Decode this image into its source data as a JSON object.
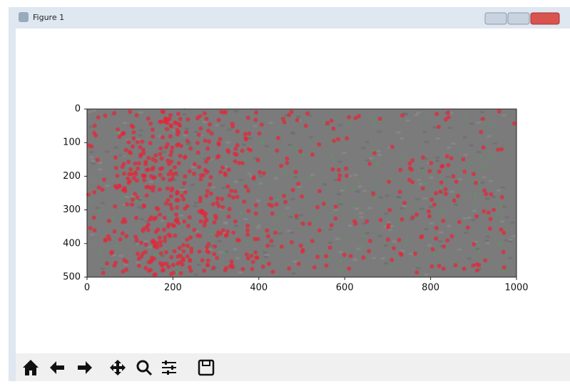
{
  "window": {
    "title": "Figure 1"
  },
  "chart_data": {
    "type": "image",
    "xlim": [
      0,
      1000
    ],
    "xticks": [
      0,
      200,
      400,
      600,
      800,
      1000
    ],
    "ylim": [
      500,
      0
    ],
    "yticks": [
      0,
      100,
      200,
      300,
      400,
      500
    ]
  }
}
